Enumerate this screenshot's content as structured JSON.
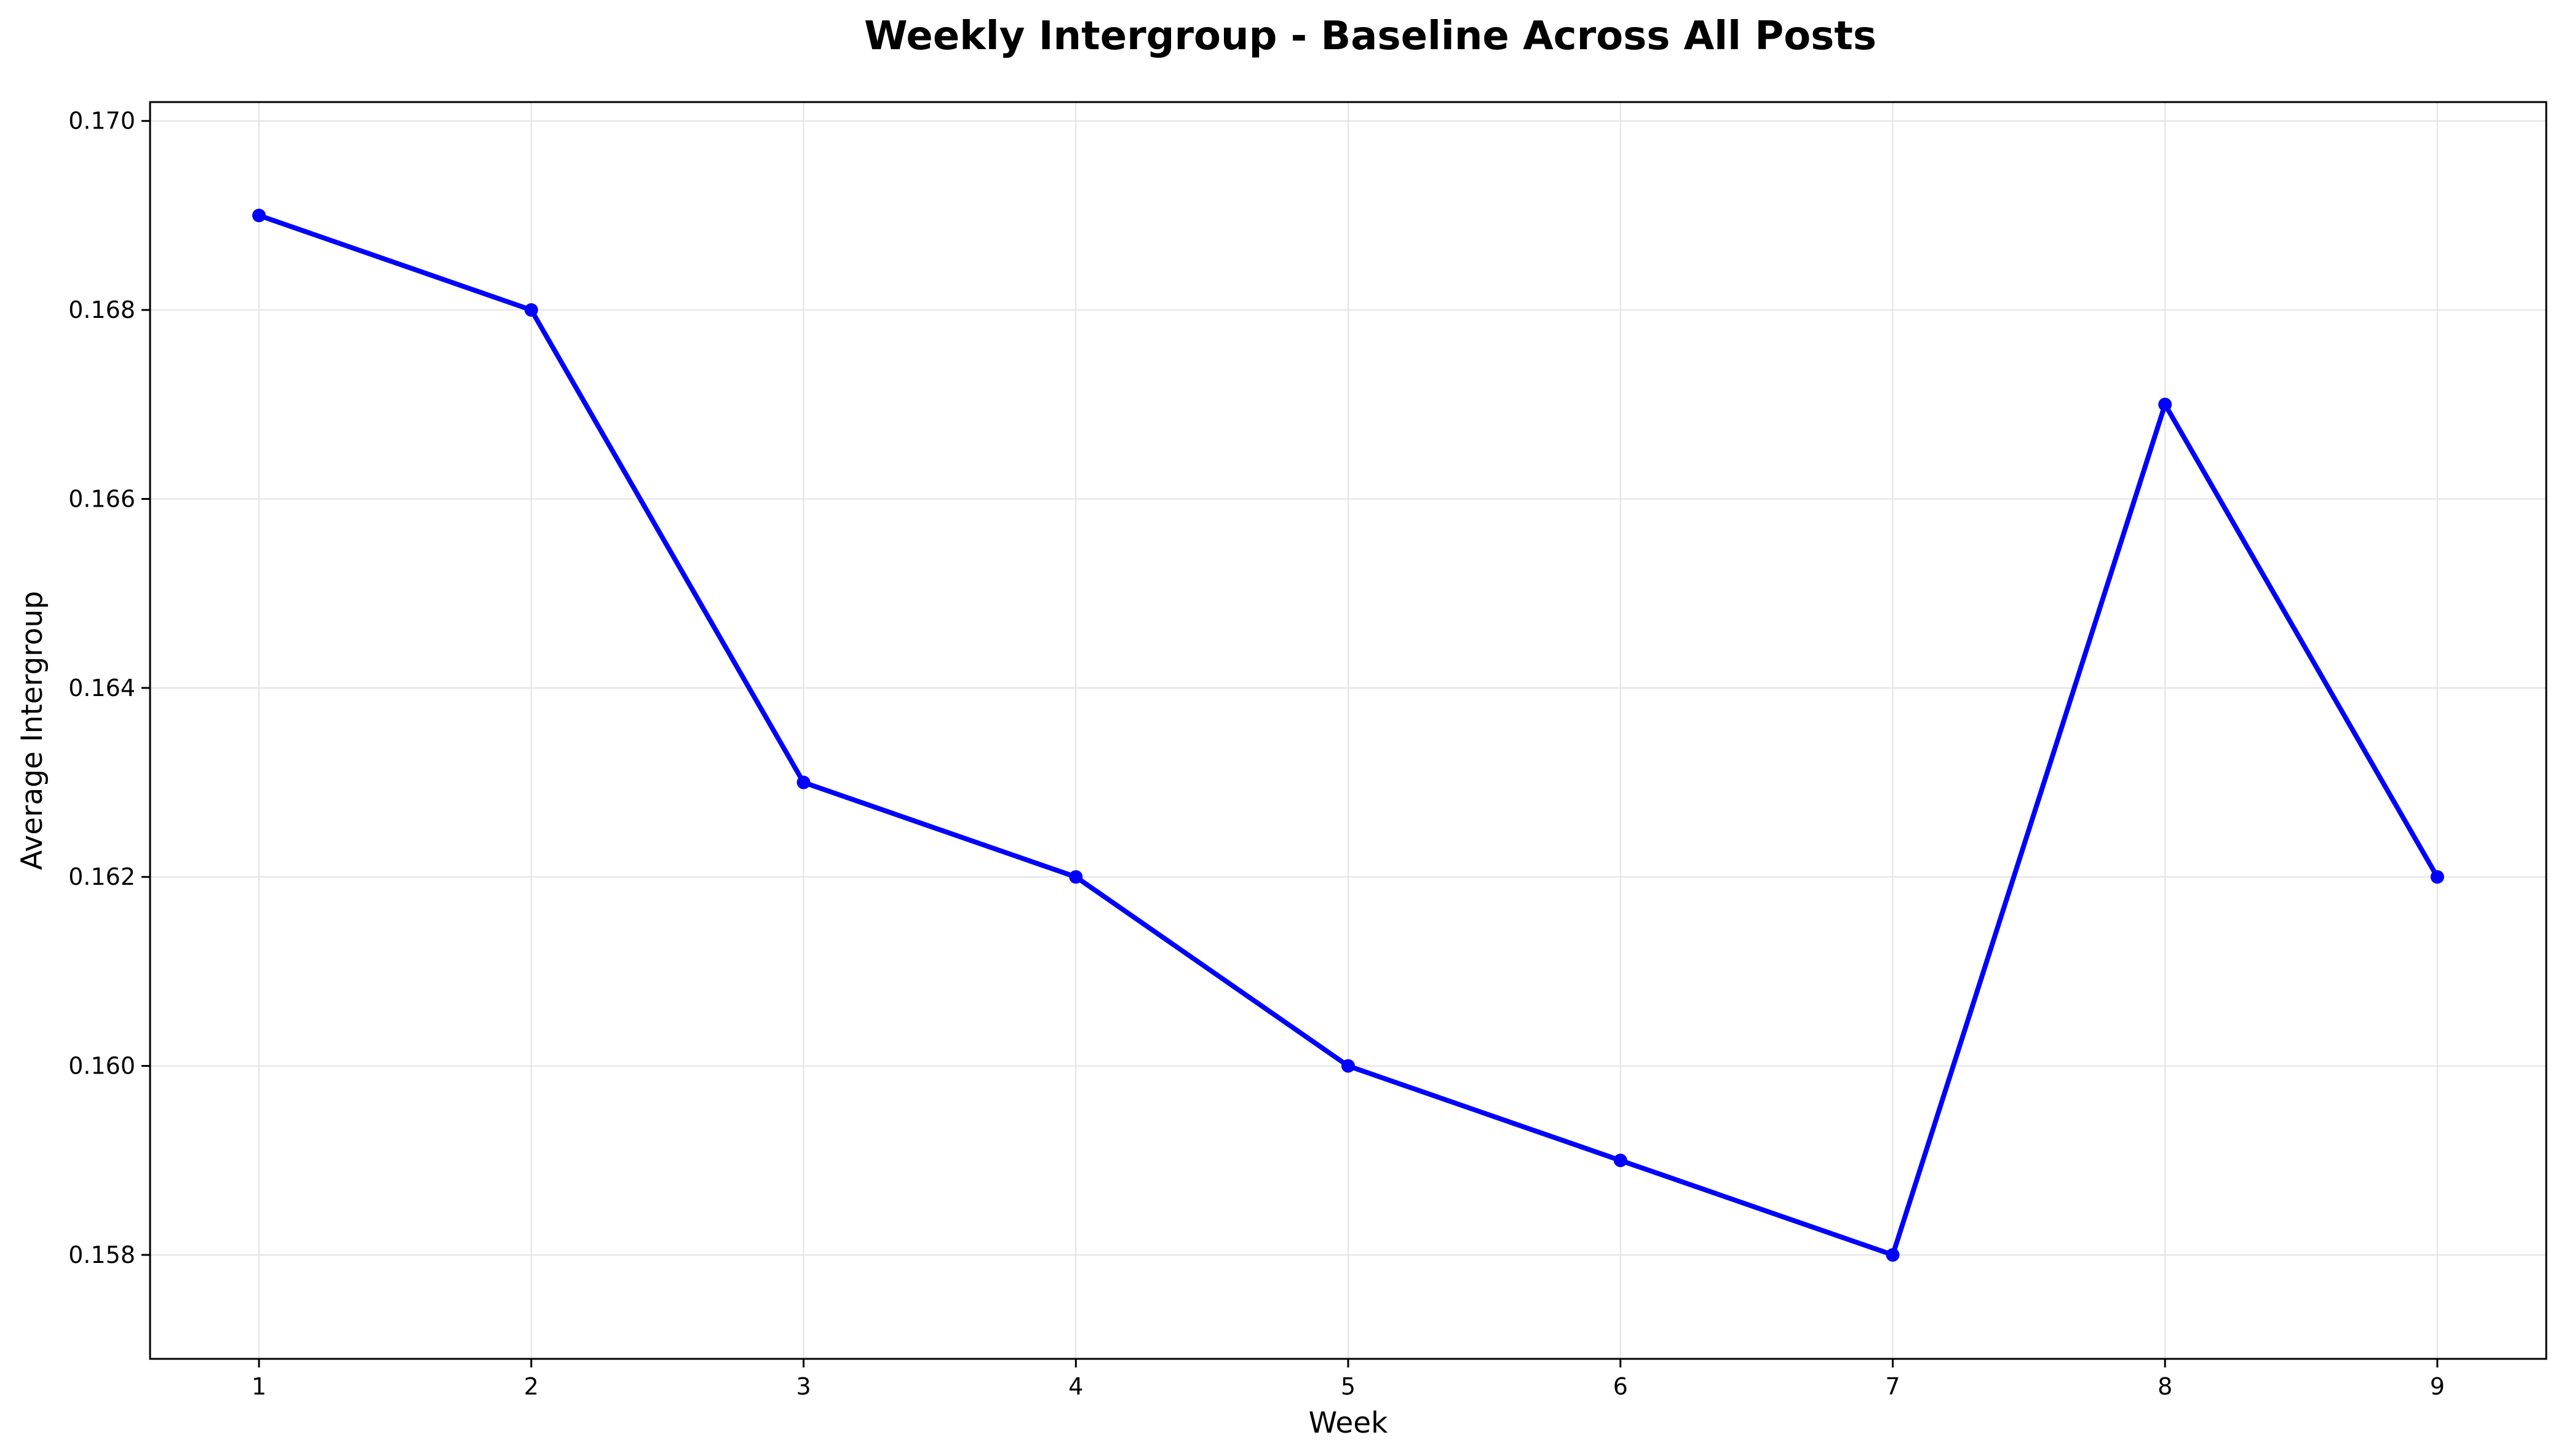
{
  "chart_data": {
    "type": "line",
    "title": "Weekly Intergroup - Baseline Across All Posts",
    "xlabel": "Week",
    "ylabel": "Average Intergroup",
    "x": [
      1,
      2,
      3,
      4,
      5,
      6,
      7,
      8,
      9
    ],
    "x_tick_labels": [
      "1",
      "2",
      "3",
      "4",
      "5",
      "6",
      "7",
      "8",
      "9"
    ],
    "y_tick_values": [
      0.158,
      0.16,
      0.162,
      0.164,
      0.166,
      0.168,
      0.17
    ],
    "y_tick_labels": [
      "0.158",
      "0.160",
      "0.162",
      "0.164",
      "0.166",
      "0.168",
      "0.170"
    ],
    "xlim": [
      0.6,
      9.4
    ],
    "ylim": [
      0.1569,
      0.1702
    ],
    "grid": true,
    "legend": "none",
    "series": [
      {
        "values": [
          0.169,
          0.168,
          0.163,
          0.162,
          0.16,
          0.159,
          0.158,
          0.167,
          0.162
        ],
        "color": "#0000ff",
        "marker": "circle"
      }
    ]
  }
}
